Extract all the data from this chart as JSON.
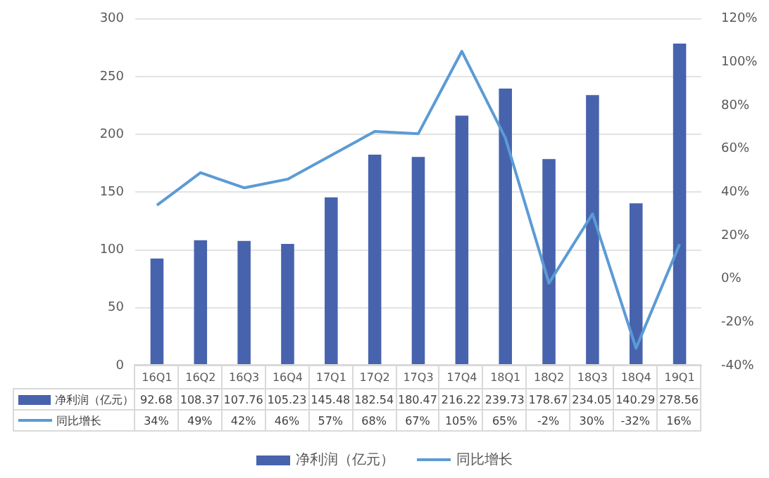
{
  "chart_data": {
    "type": "bar",
    "categories": [
      "16Q1",
      "16Q2",
      "16Q3",
      "16Q4",
      "17Q1",
      "17Q2",
      "17Q3",
      "17Q4",
      "18Q1",
      "18Q2",
      "18Q3",
      "18Q4",
      "19Q1"
    ],
    "series": [
      {
        "name": "净利润（亿元）",
        "color": "#4763ad",
        "values": [
          92.68,
          108.37,
          107.76,
          105.23,
          145.48,
          182.54,
          180.47,
          216.22,
          239.73,
          178.67,
          234.05,
          140.29,
          278.56
        ],
        "value_labels": [
          "92.68",
          "108.37",
          "107.76",
          "105.23",
          "145.48",
          "182.54",
          "180.47",
          "216.22",
          "239.73",
          "178.67",
          "234.05",
          "140.29",
          "278.56"
        ]
      },
      {
        "name": "同比增长",
        "type": "line",
        "axis": "y2",
        "color": "#5b9bd5",
        "values": [
          34,
          49,
          42,
          46,
          57,
          68,
          67,
          105,
          65,
          -2,
          30,
          -32,
          16
        ],
        "value_labels": [
          "34%",
          "49%",
          "42%",
          "46%",
          "57%",
          "68%",
          "67%",
          "105%",
          "65%",
          "-2%",
          "30%",
          "-32%",
          "16%"
        ]
      }
    ],
    "ylim": [
      0,
      300
    ],
    "yticks": [
      0,
      50,
      100,
      150,
      200,
      250,
      300
    ],
    "y2lim": [
      -40,
      120
    ],
    "y2ticks": [
      {
        "value": -40,
        "label": "-40%"
      },
      {
        "value": -20,
        "label": "-20%"
      },
      {
        "value": 0,
        "label": "0%"
      },
      {
        "value": 20,
        "label": "20%"
      },
      {
        "value": 40,
        "label": "40%"
      },
      {
        "value": 60,
        "label": "60%"
      },
      {
        "value": 80,
        "label": "80%"
      },
      {
        "value": 100,
        "label": "100%"
      },
      {
        "value": 120,
        "label": "120%"
      }
    ],
    "grid": "y",
    "legend": "bottom",
    "marker": "none",
    "line_style": "solid"
  }
}
